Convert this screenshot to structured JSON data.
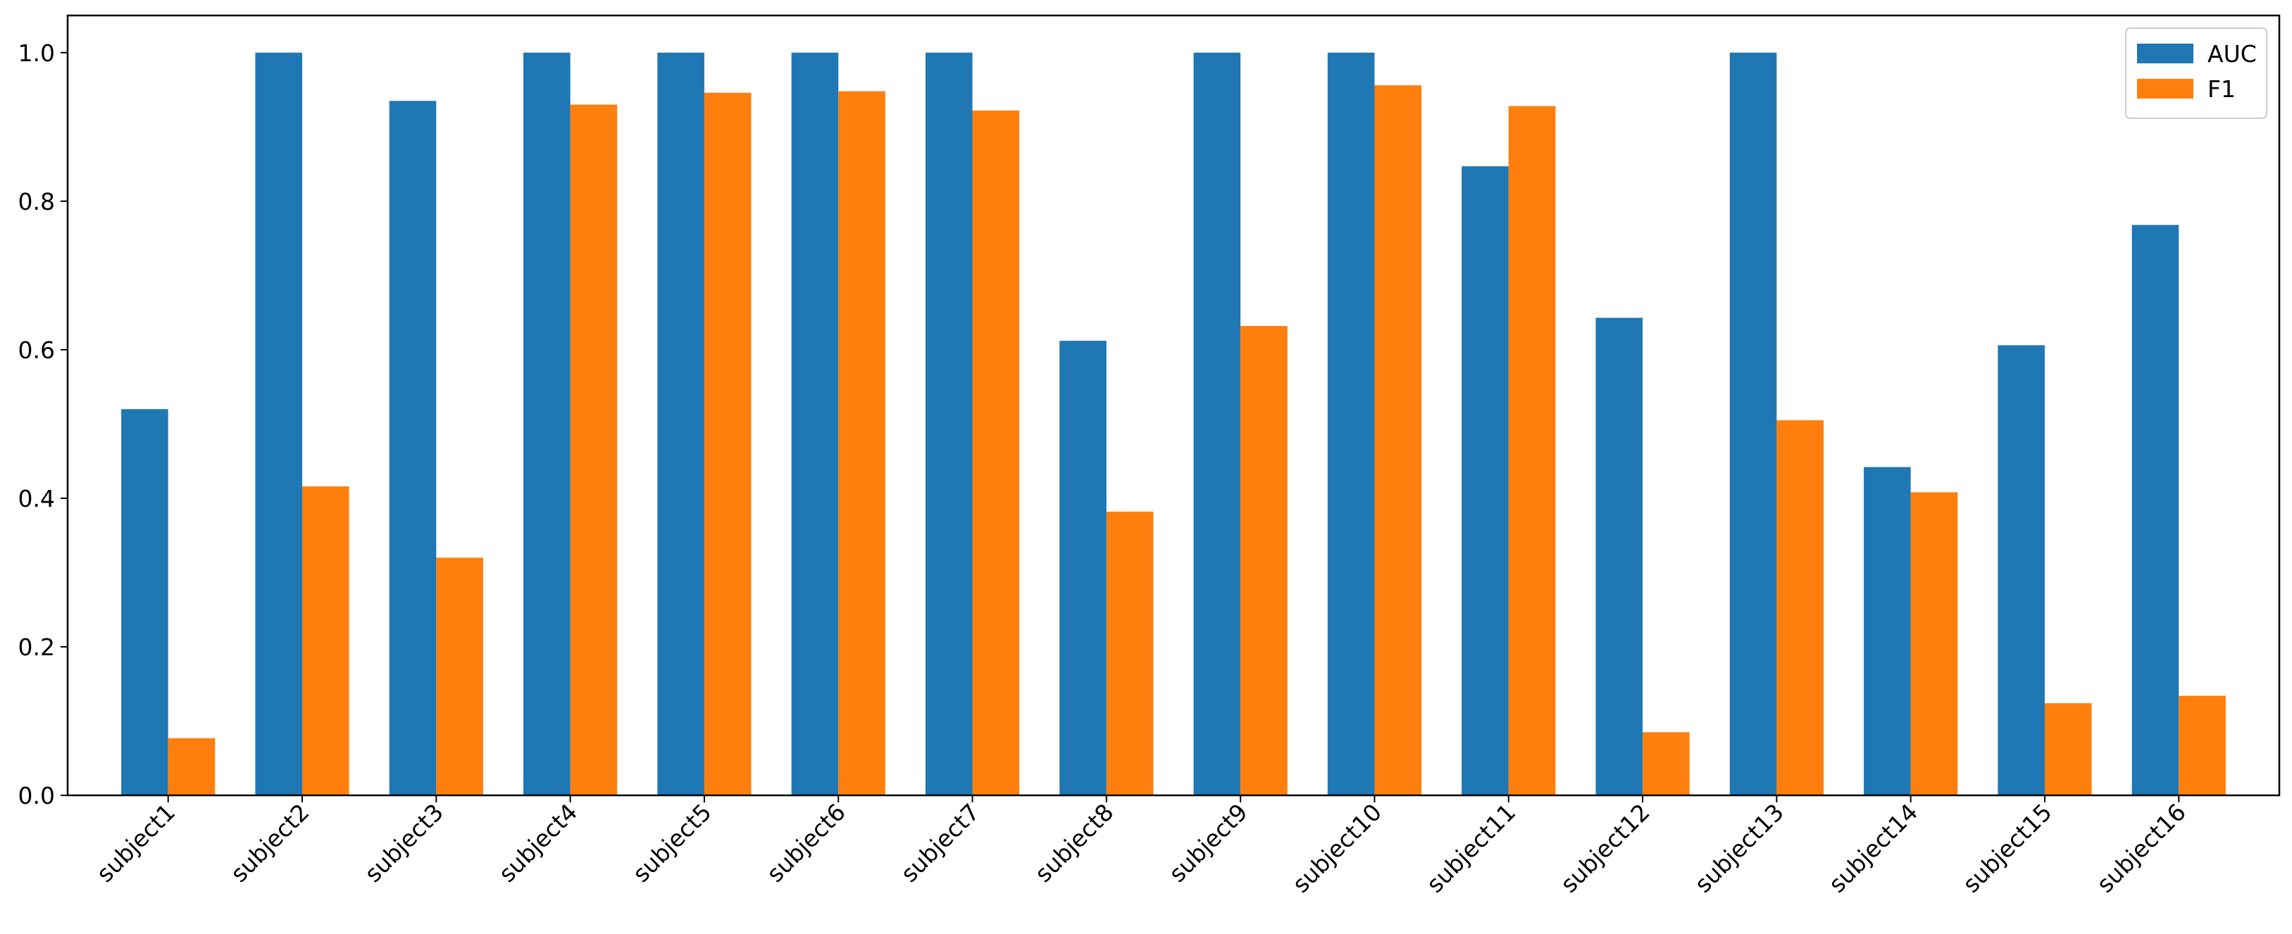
{
  "chart_data": {
    "type": "bar",
    "title": "",
    "xlabel": "",
    "ylabel": "",
    "categories": [
      "subject1",
      "subject2",
      "subject3",
      "subject4",
      "subject5",
      "subject6",
      "subject7",
      "subject8",
      "subject9",
      "subject10",
      "subject11",
      "subject12",
      "subject13",
      "subject14",
      "subject15",
      "subject16"
    ],
    "series": [
      {
        "name": "AUC",
        "color": "#1f77b4",
        "values": [
          0.52,
          1.0,
          0.935,
          1.0,
          1.0,
          1.0,
          1.0,
          0.612,
          1.0,
          1.0,
          0.847,
          0.643,
          1.0,
          0.442,
          0.606,
          0.768
        ]
      },
      {
        "name": "F1",
        "color": "#ff7f0e",
        "values": [
          0.077,
          0.416,
          0.32,
          0.93,
          0.946,
          0.948,
          0.922,
          0.382,
          0.632,
          0.956,
          0.928,
          0.085,
          0.505,
          0.408,
          0.124,
          0.134
        ]
      }
    ],
    "ylim": [
      0,
      1.05
    ],
    "yticks": [
      "0.0",
      "0.2",
      "0.4",
      "0.6",
      "0.8",
      "1.0"
    ],
    "legend_position": "top-right",
    "grid": false
  }
}
